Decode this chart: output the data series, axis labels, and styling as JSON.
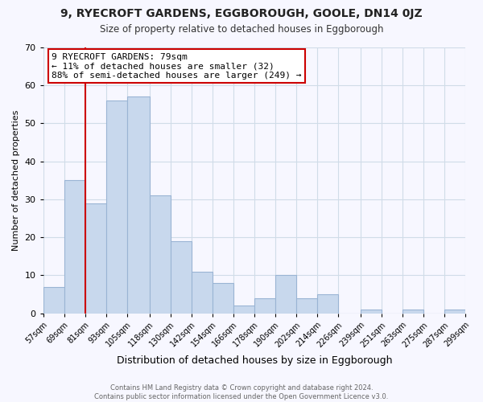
{
  "title": "9, RYECROFT GARDENS, EGGBOROUGH, GOOLE, DN14 0JZ",
  "subtitle": "Size of property relative to detached houses in Eggborough",
  "xlabel": "Distribution of detached houses by size in Eggborough",
  "ylabel": "Number of detached properties",
  "bar_color": "#c8d8ed",
  "bar_edge_color": "#9ab4d4",
  "bins": [
    57,
    69,
    81,
    93,
    105,
    118,
    130,
    142,
    154,
    166,
    178,
    190,
    202,
    214,
    226,
    239,
    251,
    263,
    275,
    287,
    299
  ],
  "bin_labels": [
    "57sqm",
    "69sqm",
    "81sqm",
    "93sqm",
    "105sqm",
    "118sqm",
    "130sqm",
    "142sqm",
    "154sqm",
    "166sqm",
    "178sqm",
    "190sqm",
    "202sqm",
    "214sqm",
    "226sqm",
    "239sqm",
    "251sqm",
    "263sqm",
    "275sqm",
    "287sqm",
    "299sqm"
  ],
  "counts": [
    7,
    35,
    29,
    56,
    57,
    31,
    19,
    11,
    8,
    2,
    4,
    10,
    4,
    5,
    0,
    1,
    0,
    1,
    0,
    1
  ],
  "ylim": [
    0,
    70
  ],
  "yticks": [
    0,
    10,
    20,
    30,
    40,
    50,
    60,
    70
  ],
  "property_line_x": 81,
  "annotation_title": "9 RYECROFT GARDENS: 79sqm",
  "annotation_line1": "← 11% of detached houses are smaller (32)",
  "annotation_line2": "88% of semi-detached houses are larger (249) →",
  "footer_line1": "Contains HM Land Registry data © Crown copyright and database right 2024.",
  "footer_line2": "Contains public sector information licensed under the Open Government Licence v3.0.",
  "grid_color": "#d0dce8",
  "property_line_color": "#cc0000",
  "background_color": "#f7f7ff"
}
